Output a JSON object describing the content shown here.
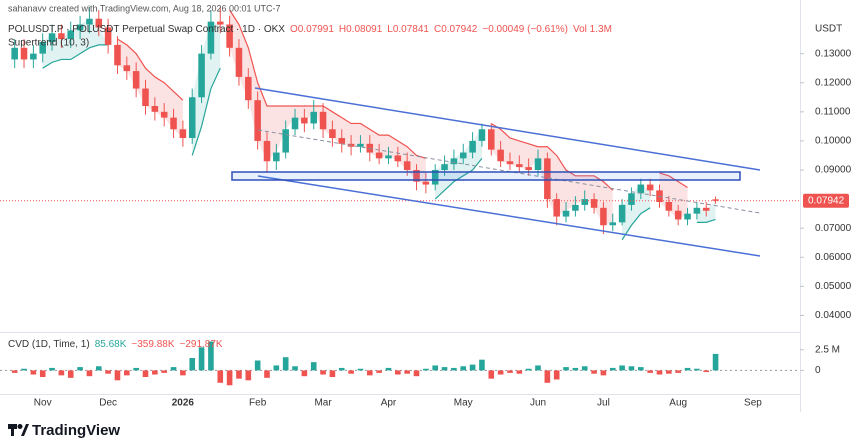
{
  "watermark": "sahanavv created with TradingView.com, Aug 18, 2026 00:01 UTC-7",
  "brand": "TradingView",
  "chart_data": {
    "type": "candlestick",
    "symbol": "POLUSDT.P · POLUSDT Perpetual Swap Contract · 1D · OKX",
    "ohlc_labels": [
      "O0.07991",
      "H0.08091",
      "L0.07841",
      "C0.07942",
      "−0.00049 (−0.61%)",
      "Vol 1.3M"
    ],
    "indicator": "Supertrend (10, 3)",
    "currency": "USDT",
    "up_color": "#26a69a",
    "down_color": "#ef5350",
    "categories": [
      null,
      null,
      null,
      "Nov",
      null,
      null,
      null,
      null,
      null,
      null,
      "Dec",
      null,
      null,
      null,
      null,
      null,
      null,
      null,
      "2026",
      null,
      null,
      null,
      null,
      null,
      null,
      null,
      "Feb",
      null,
      null,
      null,
      null,
      null,
      null,
      "Mar",
      null,
      null,
      null,
      null,
      null,
      null,
      "Apr",
      null,
      null,
      null,
      null,
      null,
      null,
      null,
      "May",
      null,
      null,
      null,
      null,
      null,
      null,
      null,
      "Jun",
      null,
      null,
      null,
      null,
      null,
      null,
      "Jul",
      null,
      null,
      null,
      null,
      null,
      null,
      null,
      "Aug",
      null,
      null,
      null,
      null,
      null,
      null,
      null,
      "Sep",
      null,
      null,
      null,
      null
    ],
    "open": [
      0.128,
      0.132,
      0.128,
      0.13,
      0.134,
      0.137,
      0.135,
      0.138,
      0.14,
      0.142,
      0.139,
      0.133,
      0.126,
      0.124,
      0.118,
      0.112,
      0.11,
      0.108,
      0.104,
      0.101,
      0.115,
      0.13,
      0.141,
      0.14,
      0.132,
      0.122,
      0.114,
      0.1,
      0.093,
      0.096,
      0.104,
      0.108,
      0.106,
      0.11,
      0.104,
      0.101,
      0.099,
      0.098,
      0.099,
      0.096,
      0.094,
      0.095,
      0.093,
      0.09,
      0.086,
      0.085,
      0.09,
      0.092,
      0.094,
      0.096,
      0.1,
      0.104,
      0.097,
      0.093,
      0.092,
      0.091,
      0.09,
      0.094,
      0.08,
      0.074,
      0.076,
      0.078,
      0.08,
      0.077,
      0.071,
      0.072,
      0.078,
      0.082,
      0.085,
      0.083,
      0.079,
      0.076,
      0.073,
      0.075,
      0.077,
      0.07991,
      null,
      null,
      null,
      null,
      null,
      null,
      null,
      null
    ],
    "high": [
      0.135,
      0.135,
      0.133,
      0.137,
      0.14,
      0.14,
      0.141,
      0.143,
      0.146,
      0.145,
      0.142,
      0.136,
      0.129,
      0.127,
      0.121,
      0.115,
      0.113,
      0.111,
      0.107,
      0.118,
      0.133,
      0.145,
      0.146,
      0.143,
      0.135,
      0.125,
      0.117,
      0.103,
      0.099,
      0.107,
      0.111,
      0.111,
      0.114,
      0.113,
      0.107,
      0.104,
      0.102,
      0.102,
      0.102,
      0.099,
      0.098,
      0.098,
      0.096,
      0.092,
      0.089,
      0.092,
      0.095,
      0.097,
      0.099,
      0.103,
      0.106,
      0.106,
      0.1,
      0.096,
      0.095,
      0.094,
      0.097,
      0.096,
      0.082,
      0.079,
      0.081,
      0.083,
      0.082,
      0.079,
      0.075,
      0.08,
      0.084,
      0.087,
      0.087,
      0.085,
      0.081,
      0.078,
      0.077,
      0.079,
      0.079,
      0.08091,
      null,
      null,
      null,
      null,
      null,
      null,
      null,
      null
    ],
    "low": [
      0.125,
      0.125,
      0.125,
      0.127,
      0.131,
      0.132,
      0.132,
      0.135,
      0.137,
      0.136,
      0.13,
      0.123,
      0.121,
      0.115,
      0.109,
      0.107,
      0.105,
      0.101,
      0.098,
      0.099,
      0.113,
      0.128,
      0.137,
      0.129,
      0.119,
      0.111,
      0.097,
      0.089,
      0.09,
      0.094,
      0.102,
      0.103,
      0.104,
      0.101,
      0.098,
      0.096,
      0.095,
      0.096,
      0.093,
      0.092,
      0.092,
      0.091,
      0.088,
      0.083,
      0.082,
      0.083,
      0.088,
      0.09,
      0.092,
      0.094,
      0.098,
      0.095,
      0.091,
      0.09,
      0.089,
      0.088,
      0.088,
      0.077,
      0.071,
      0.072,
      0.074,
      0.076,
      0.075,
      0.068,
      0.069,
      0.071,
      0.076,
      0.08,
      0.081,
      0.077,
      0.074,
      0.071,
      0.071,
      0.073,
      0.074,
      0.07841,
      null,
      null,
      null,
      null,
      null,
      null,
      null,
      null
    ],
    "close": [
      0.132,
      0.128,
      0.13,
      0.134,
      0.137,
      0.135,
      0.138,
      0.14,
      0.142,
      0.139,
      0.133,
      0.126,
      0.124,
      0.118,
      0.112,
      0.11,
      0.108,
      0.104,
      0.101,
      0.115,
      0.13,
      0.141,
      0.14,
      0.132,
      0.122,
      0.114,
      0.1,
      0.093,
      0.096,
      0.104,
      0.108,
      0.106,
      0.11,
      0.104,
      0.101,
      0.099,
      0.098,
      0.099,
      0.096,
      0.094,
      0.095,
      0.093,
      0.09,
      0.086,
      0.085,
      0.09,
      0.092,
      0.094,
      0.096,
      0.1,
      0.104,
      0.097,
      0.093,
      0.092,
      0.091,
      0.09,
      0.094,
      0.08,
      0.074,
      0.076,
      0.078,
      0.08,
      0.077,
      0.071,
      0.072,
      0.078,
      0.082,
      0.085,
      0.083,
      0.079,
      0.076,
      0.073,
      0.075,
      0.077,
      0.076,
      0.07942,
      null,
      null,
      null,
      null,
      null,
      null,
      null,
      null
    ],
    "last_price_label": "0.07942",
    "ylim": [
      0.035,
      0.145
    ],
    "yticks": [
      {
        "value": 0.04,
        "label": "0.04000"
      },
      {
        "value": 0.05,
        "label": "0.05000"
      },
      {
        "value": 0.06,
        "label": "0.06000"
      },
      {
        "value": 0.07,
        "label": "0.07000"
      },
      {
        "value": 0.09,
        "label": "0.09000"
      },
      {
        "value": 0.1,
        "label": "0.10000"
      },
      {
        "value": 0.11,
        "label": "0.11000"
      },
      {
        "value": 0.12,
        "label": "0.12000"
      },
      {
        "value": 0.13,
        "label": "0.13000"
      }
    ],
    "grid": false,
    "supertrend": [
      {
        "color": "#26a69a",
        "fill": "rgba(38,166,154,0.14)",
        "values": [
          null,
          null,
          null,
          0.125,
          0.127,
          0.128,
          0.128,
          0.13,
          0.132,
          0.133,
          0.133,
          null,
          null,
          null,
          null,
          null,
          null,
          null,
          null,
          0.095,
          0.105,
          0.118,
          0.125,
          null,
          null,
          null,
          null,
          null,
          null,
          null,
          null,
          null,
          null,
          null,
          null,
          null,
          null,
          null,
          null,
          null,
          null,
          null,
          null,
          null,
          null,
          0.08,
          0.083,
          0.086,
          0.088,
          0.09,
          0.094,
          null,
          null,
          null,
          null,
          null,
          null,
          null,
          null,
          null,
          null,
          null,
          null,
          null,
          null,
          0.066,
          0.071,
          0.075,
          0.077,
          null,
          null,
          null,
          null,
          0.072,
          0.072,
          0.073,
          null,
          null,
          null,
          null,
          null,
          null,
          null,
          null
        ]
      },
      {
        "color": "#ef5350",
        "fill": "rgba(239,83,80,0.16)",
        "values": [
          null,
          null,
          null,
          null,
          null,
          null,
          null,
          null,
          null,
          null,
          null,
          0.135,
          0.133,
          0.13,
          0.125,
          0.122,
          0.12,
          0.117,
          0.114,
          null,
          null,
          null,
          null,
          0.145,
          0.14,
          0.132,
          0.12,
          0.112,
          0.112,
          0.112,
          0.112,
          0.112,
          0.112,
          0.112,
          0.11,
          0.108,
          0.106,
          0.106,
          0.104,
          0.102,
          0.102,
          0.1,
          0.098,
          0.095,
          0.094,
          null,
          null,
          null,
          null,
          null,
          null,
          0.106,
          0.104,
          0.101,
          0.1,
          0.099,
          0.098,
          0.098,
          0.095,
          0.09,
          0.088,
          0.088,
          0.088,
          0.086,
          0.083,
          null,
          null,
          null,
          null,
          0.089,
          0.088,
          0.086,
          0.084,
          null,
          null,
          null,
          null,
          null,
          null,
          null,
          null,
          null,
          null,
          null
        ]
      }
    ],
    "cvd": {
      "title": "CVD (1D, Time, 1)",
      "readouts": [
        {
          "text": "85.68K",
          "color": "#26a69a"
        },
        {
          "text": "−359.88K",
          "color": "#ef5350"
        },
        {
          "text": "−291.87K",
          "color": "#ef5350"
        }
      ],
      "values": [
        -300000,
        200000,
        -500000,
        -800000,
        300000,
        -600000,
        -900000,
        400000,
        -700000,
        500000,
        -400000,
        -1200000,
        -600000,
        300000,
        -800000,
        -500000,
        -300000,
        400000,
        -600000,
        1500000,
        2800000,
        3500000,
        -1500000,
        -1800000,
        -1000000,
        -1200000,
        1200000,
        -900000,
        600000,
        1600000,
        500000,
        -700000,
        1000000,
        -500000,
        -800000,
        300000,
        -400000,
        200000,
        -600000,
        -300000,
        300000,
        -500000,
        -400000,
        -700000,
        200000,
        600000,
        400000,
        300000,
        500000,
        700000,
        1300000,
        -1000000,
        -500000,
        -300000,
        -400000,
        200000,
        600000,
        -1500000,
        -1100000,
        400000,
        300000,
        500000,
        -400000,
        -600000,
        300000,
        600000,
        500000,
        400000,
        -300000,
        -500000,
        -400000,
        -300000,
        300000,
        200000,
        -200000,
        2000000,
        null,
        null,
        null,
        null,
        null,
        null,
        null,
        null
      ],
      "ylim": [
        -2860000,
        4290000
      ],
      "yticks": [
        {
          "value": 2500000,
          "label": "2.5 M"
        },
        0
      ]
    }
  }
}
